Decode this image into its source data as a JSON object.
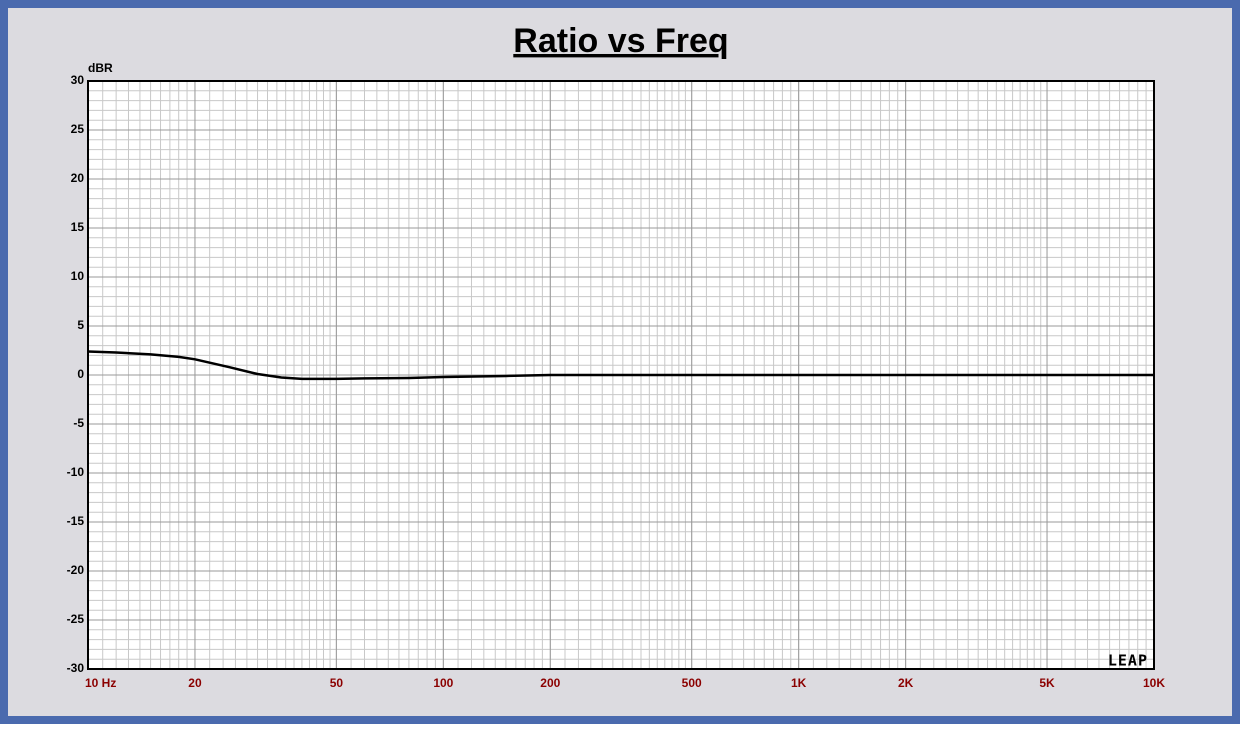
{
  "chart_data": {
    "type": "line",
    "title": "Ratio vs Freq",
    "y_unit": "dBR",
    "watermark": "LEAP",
    "x": [
      10,
      12,
      15,
      18,
      20,
      25,
      30,
      35,
      40,
      50,
      60,
      80,
      100,
      150,
      200,
      500,
      1000,
      2000,
      5000,
      10000
    ],
    "values": [
      2.4,
      2.3,
      2.1,
      1.85,
      1.6,
      0.8,
      0.1,
      -0.25,
      -0.4,
      -0.4,
      -0.35,
      -0.3,
      -0.2,
      -0.1,
      0,
      0,
      0,
      0,
      0,
      0
    ],
    "color": "#000000",
    "xlim": [
      10,
      10000
    ],
    "xscale": "log",
    "xticks": [
      {
        "value": 10,
        "label": "10  Hz"
      },
      20,
      50,
      100,
      200,
      500,
      {
        "value": 1000,
        "label": "1K"
      },
      {
        "value": 2000,
        "label": "2K"
      },
      {
        "value": 5000,
        "label": "5K"
      },
      {
        "value": 10000,
        "label": "10K"
      }
    ],
    "ylim": [
      -30,
      30
    ],
    "yticks": [
      -30,
      -25,
      -20,
      -15,
      -10,
      -5,
      0,
      5,
      10,
      15,
      20,
      25,
      30
    ],
    "grid": true,
    "minor_grid": true
  }
}
